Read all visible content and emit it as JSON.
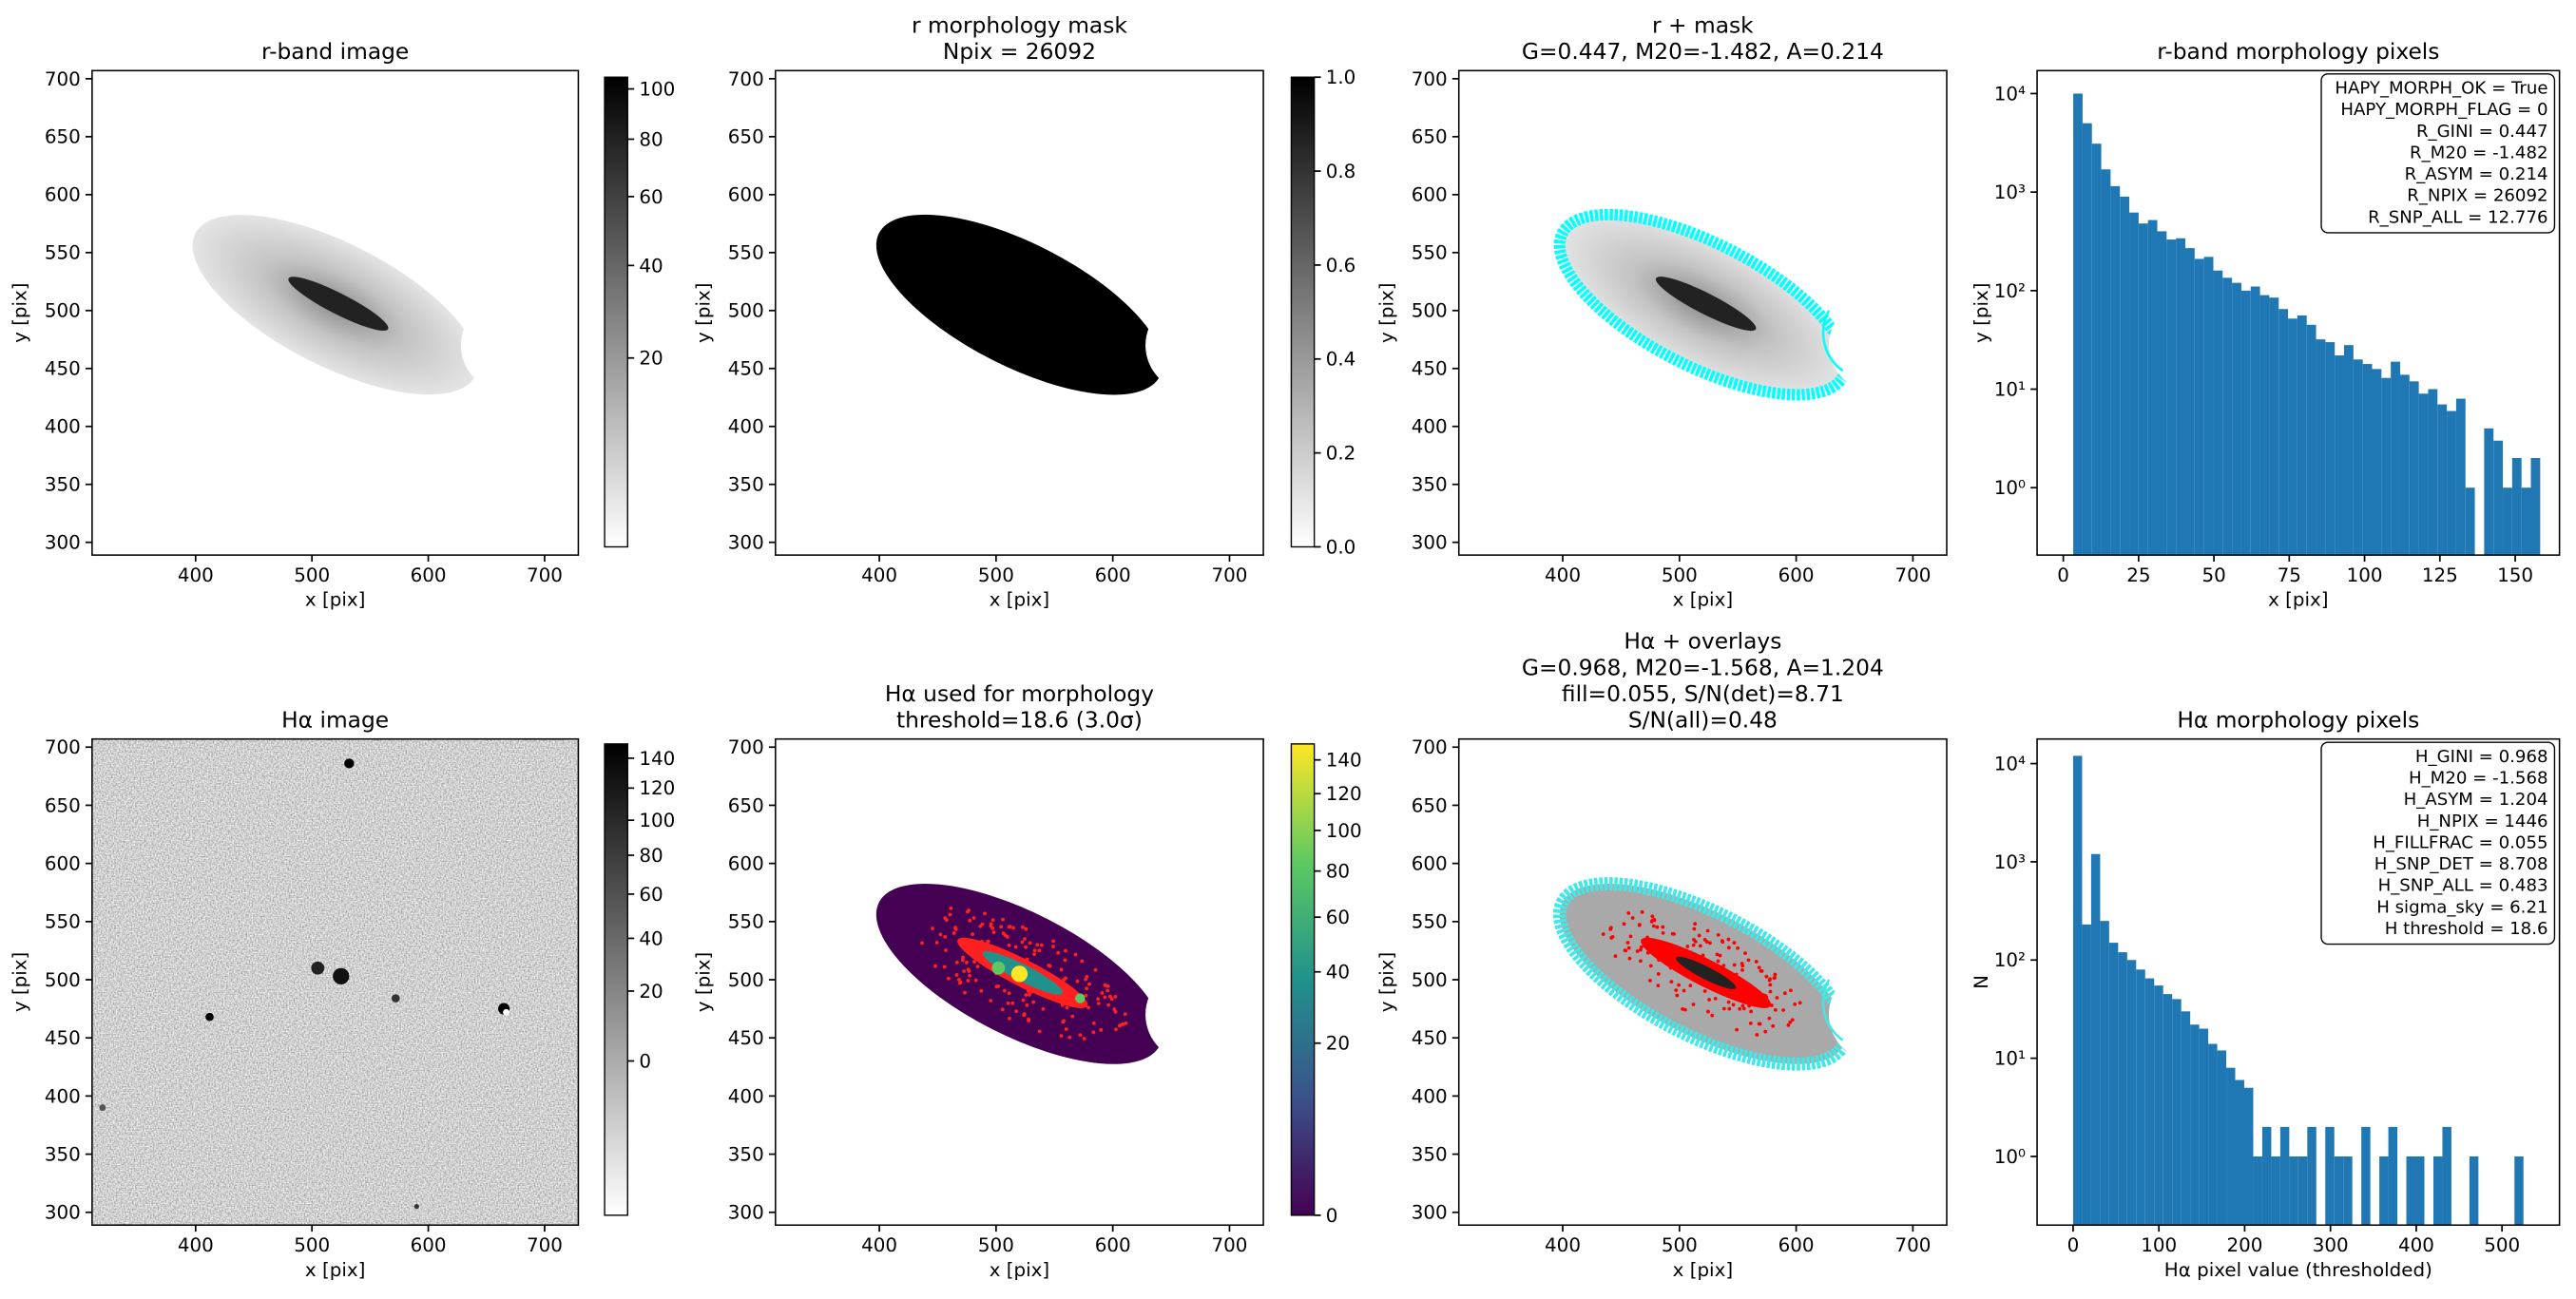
{
  "chart_data": [
    {
      "type": "image",
      "title": [
        "r-band image"
      ],
      "xlabel": "x [pix]",
      "ylabel": "y [pix]",
      "xlim": [
        311,
        729
      ],
      "ylim": [
        289,
        707
      ],
      "xticks": [
        400,
        500,
        600,
        700
      ],
      "yticks": [
        300,
        350,
        400,
        450,
        500,
        550,
        600,
        650,
        700
      ],
      "colorbar": {
        "colormap": "gray_r",
        "scale": "sqrt",
        "lim": [
          3.6,
          105
        ],
        "ticks": [
          20,
          40,
          60,
          80,
          100
        ]
      }
    },
    {
      "type": "image",
      "title": [
        "r morphology mask",
        "Npix = 26092"
      ],
      "xlabel": "x [pix]",
      "ylabel": "y [pix]",
      "xlim": [
        311,
        729
      ],
      "ylim": [
        289,
        707
      ],
      "xticks": [
        400,
        500,
        600,
        700
      ],
      "yticks": [
        300,
        350,
        400,
        450,
        500,
        550,
        600,
        650,
        700
      ],
      "colorbar": {
        "colormap": "gray_r",
        "scale": "linear",
        "lim": [
          0,
          1
        ],
        "ticks": [
          {
            "value": 0,
            "label": "0.0"
          },
          0.2,
          0.4,
          0.6,
          0.8,
          {
            "value": 1,
            "label": "1.0"
          }
        ]
      }
    },
    {
      "type": "image",
      "title": [
        "r + mask",
        "G=0.447, M20=-1.482, A=0.214"
      ],
      "xlabel": "x [pix]",
      "ylabel": "y [pix]",
      "xlim": [
        311,
        729
      ],
      "ylim": [
        289,
        707
      ],
      "xticks": [
        400,
        500,
        600,
        700
      ],
      "yticks": [
        300,
        350,
        400,
        450,
        500,
        550,
        600,
        650,
        700
      ]
    },
    {
      "type": "histogram",
      "title": [
        "r-band morphology pixels"
      ],
      "xlabel": "x [pix]",
      "ylabel": "y [pix]",
      "color": "#1f77b4",
      "ylog": true,
      "xlim": [
        -8.7,
        164.7
      ],
      "ylim": [
        0.207,
        17100
      ],
      "xticks": [
        0,
        25,
        50,
        75,
        100,
        125,
        150
      ],
      "yticks": [
        {
          "value": 1,
          "label": "10⁰"
        },
        {
          "value": 10,
          "label": "10¹"
        },
        {
          "value": 100,
          "label": "10²"
        },
        {
          "value": 1000,
          "label": "10³"
        },
        {
          "value": 10000,
          "label": "10⁴"
        }
      ],
      "bins": [
        3.3,
        6.4,
        9.5,
        12.6,
        15.7,
        18.8,
        21.9,
        25.0,
        28.1,
        31.2,
        34.3,
        37.4,
        40.5,
        43.6,
        46.7,
        49.8,
        52.9,
        56.0,
        59.1,
        62.2,
        65.3,
        68.4,
        71.5,
        74.6,
        77.7,
        80.8,
        83.9,
        87.0,
        90.1,
        93.2,
        96.3,
        99.4,
        102.5,
        105.6,
        108.7,
        111.8,
        114.9,
        118.0,
        121.1,
        124.2,
        127.3,
        130.4,
        133.5,
        136.6,
        139.7,
        142.8,
        145.9,
        149.0,
        152.1,
        155.2,
        158.3
      ],
      "counts": [
        10000,
        5000,
        3100,
        1700,
        1150,
        900,
        620,
        480,
        520,
        400,
        330,
        340,
        270,
        210,
        220,
        160,
        135,
        120,
        100,
        110,
        90,
        85,
        65,
        52,
        56,
        45,
        32,
        30,
        22,
        28,
        20,
        18,
        16,
        13,
        19,
        14,
        12,
        9,
        10,
        7,
        6,
        8,
        1,
        0,
        4,
        3,
        1,
        2,
        1,
        2
      ],
      "annotation_loc": "upper right",
      "annotation": [
        "HAPY_MORPH_OK = True",
        "HAPY_MORPH_FLAG = 0",
        "R_GINI = 0.447",
        "R_M20 = -1.482",
        "R_ASYM = 0.214",
        "R_NPIX = 26092",
        "R_SNP_ALL = 12.776"
      ]
    },
    {
      "type": "image",
      "title": [
        "Hα image"
      ],
      "xlabel": "x [pix]",
      "ylabel": "y [pix]",
      "xlim": [
        311,
        729
      ],
      "ylim": [
        289,
        707
      ],
      "xticks": [
        400,
        500,
        600,
        700
      ],
      "yticks": [
        300,
        350,
        400,
        450,
        500,
        550,
        600,
        650,
        700
      ],
      "colorbar": {
        "colormap": "gray_r",
        "scale": "sqrt",
        "lim": [
          -18,
          150
        ],
        "ticks": [
          0,
          20,
          40,
          60,
          80,
          100,
          120,
          140
        ]
      }
    },
    {
      "type": "image",
      "title": [
        "Hα used for morphology",
        "threshold=18.6 (3.0σ)"
      ],
      "xlabel": "x [pix]",
      "ylabel": "y [pix]",
      "xlim": [
        311,
        729
      ],
      "ylim": [
        289,
        707
      ],
      "xticks": [
        400,
        500,
        600,
        700
      ],
      "yticks": [
        300,
        350,
        400,
        450,
        500,
        550,
        600,
        650,
        700
      ],
      "colorbar": {
        "colormap": "viridis",
        "scale": "sqrt",
        "lim": [
          0,
          150
        ],
        "ticks": [
          0,
          20,
          40,
          60,
          80,
          100,
          120,
          140
        ]
      }
    },
    {
      "type": "image",
      "title": [
        "Hα + overlays",
        "G=0.968, M20=-1.568, A=1.204",
        "fill=0.055, S/N(det)=8.71",
        "S/N(all)=0.48"
      ],
      "xlabel": "x [pix]",
      "ylabel": "y [pix]",
      "xlim": [
        311,
        729
      ],
      "ylim": [
        289,
        707
      ],
      "xticks": [
        400,
        500,
        600,
        700
      ],
      "yticks": [
        300,
        350,
        400,
        450,
        500,
        550,
        600,
        650,
        700
      ]
    },
    {
      "type": "histogram",
      "title": [
        "Hα morphology pixels"
      ],
      "xlabel": "Hα pixel value (thresholded)",
      "ylabel": "N",
      "color": "#1f77b4",
      "ylog": true,
      "xlim": [
        -42,
        567
      ],
      "ylim": [
        0.2,
        17800
      ],
      "xticks": [
        0,
        100,
        200,
        300,
        400,
        500
      ],
      "yticks": [
        {
          "value": 1,
          "label": "10⁰"
        },
        {
          "value": 10,
          "label": "10¹"
        },
        {
          "value": 100,
          "label": "10²"
        },
        {
          "value": 1000,
          "label": "10³"
        },
        {
          "value": 10000,
          "label": "10⁴"
        }
      ],
      "bins": [
        0,
        10.5,
        21,
        31.5,
        42,
        52.5,
        63,
        73.5,
        84,
        94.5,
        105,
        115.5,
        126,
        136.5,
        147,
        157.5,
        168,
        178.5,
        189,
        199.5,
        210,
        220.5,
        231,
        241.5,
        252,
        262.5,
        273,
        283.5,
        294,
        304.5,
        315,
        325.5,
        336,
        346.5,
        357,
        367.5,
        378,
        388.5,
        399,
        409.5,
        420,
        430.5,
        441,
        451.5,
        462,
        472.5,
        483,
        493.5,
        504,
        514.5,
        525
      ],
      "counts": [
        12000,
        230,
        1200,
        250,
        150,
        120,
        100,
        80,
        65,
        55,
        45,
        40,
        30,
        22,
        20,
        14,
        12,
        8,
        6,
        5,
        1,
        2,
        1,
        2,
        1,
        1,
        2,
        0,
        2,
        1,
        1,
        0,
        2,
        0,
        1,
        2,
        0,
        1,
        1,
        0,
        1,
        2,
        0,
        0,
        1,
        0,
        0,
        0,
        0,
        1
      ],
      "annotation_loc": "upper right",
      "annotation": [
        "H_GINI = 0.968",
        "H_M20 = -1.568",
        "H_ASYM = 1.204",
        "H_NPIX = 1446",
        "H_FILLFRAC = 0.055",
        "H_SNP_DET = 8.708",
        "H_SNP_ALL = 0.483",
        "H sigma_sky = 6.21",
        "H threshold = 18.6"
      ]
    }
  ]
}
